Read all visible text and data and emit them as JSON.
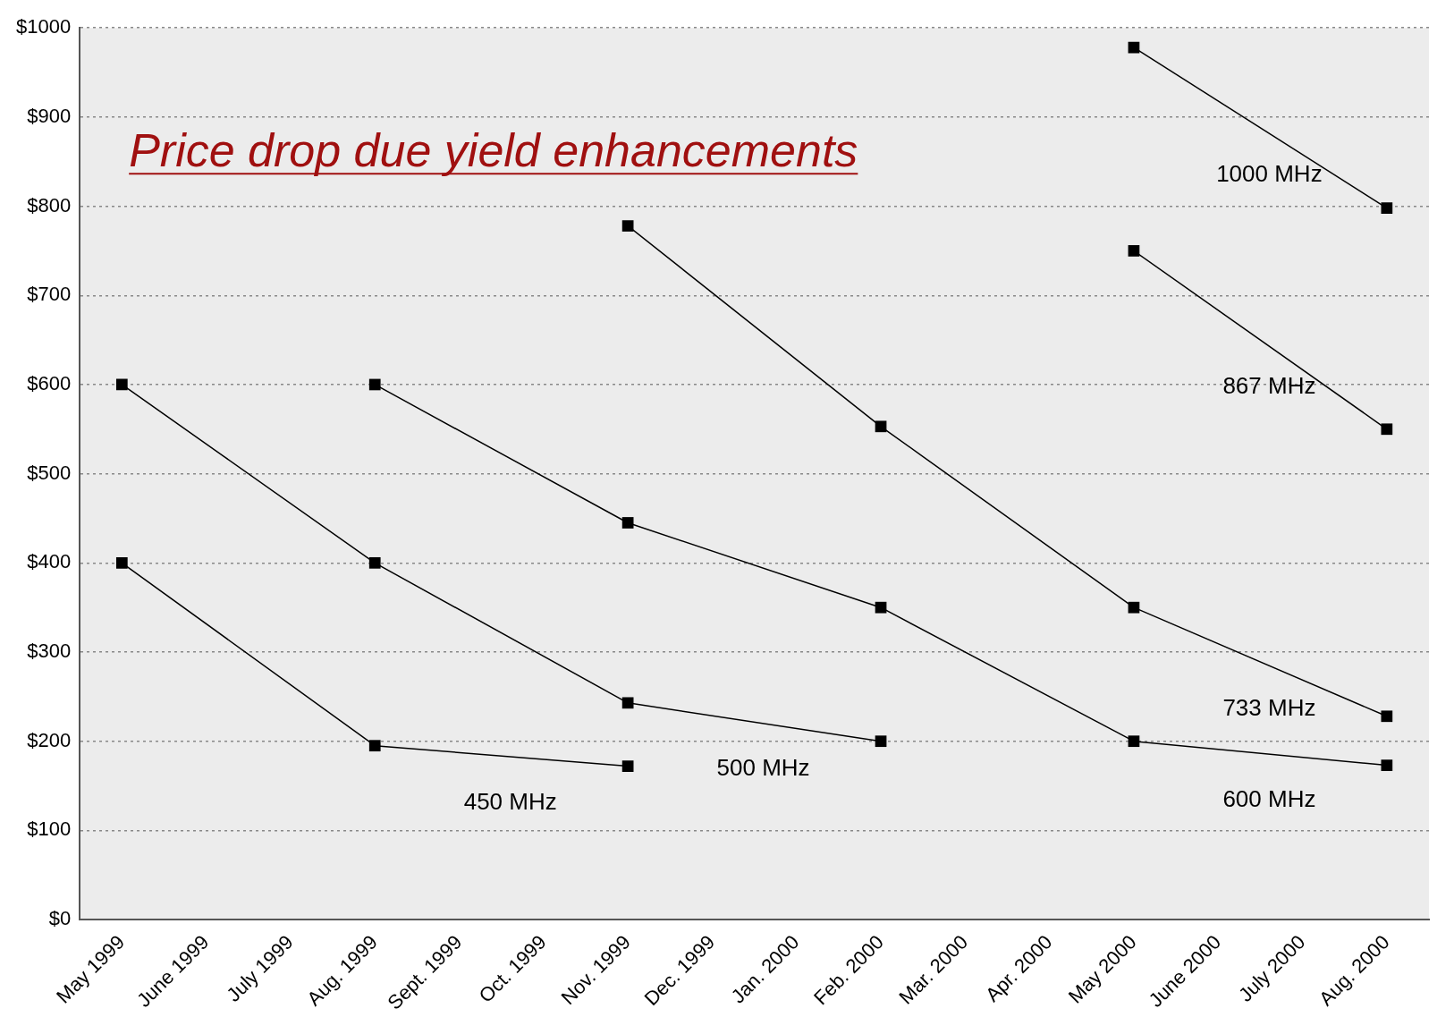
{
  "chart_data": {
    "type": "line",
    "categories": [
      "May 1999",
      "June 1999",
      "July 1999",
      "Aug. 1999",
      "Sept. 1999",
      "Oct. 1999",
      "Nov. 1999",
      "Dec. 1999",
      "Jan. 2000",
      "Feb. 2000",
      "Mar. 2000",
      "Apr. 2000",
      "May 2000",
      "June 2000",
      "July 2000",
      "Aug. 2000"
    ],
    "series": [
      {
        "name": "450 MHz",
        "color": "#000000",
        "values": [
          400,
          null,
          null,
          195,
          null,
          null,
          172,
          null,
          null,
          null,
          null,
          null,
          null,
          null,
          null,
          null
        ]
      },
      {
        "name": "500 MHz",
        "color": "#000000",
        "values": [
          600,
          null,
          null,
          400,
          null,
          null,
          243,
          null,
          null,
          200,
          null,
          null,
          null,
          null,
          null,
          null
        ]
      },
      {
        "name": "600 MHz",
        "color": "#000000",
        "values": [
          null,
          null,
          null,
          600,
          null,
          null,
          445,
          null,
          null,
          350,
          null,
          null,
          200,
          null,
          null,
          173
        ]
      },
      {
        "name": "733 MHz",
        "color": "#000000",
        "values": [
          null,
          null,
          null,
          null,
          null,
          null,
          778,
          null,
          null,
          553,
          null,
          null,
          350,
          null,
          null,
          228
        ]
      },
      {
        "name": "867 MHz",
        "color": "#000000",
        "values": [
          null,
          null,
          null,
          null,
          null,
          null,
          null,
          null,
          null,
          null,
          null,
          null,
          750,
          null,
          null,
          550
        ]
      },
      {
        "name": "1000 MHz",
        "color": "#000000",
        "values": [
          null,
          null,
          null,
          null,
          null,
          null,
          null,
          null,
          null,
          null,
          null,
          null,
          978,
          null,
          null,
          798
        ]
      }
    ],
    "ylim": [
      0,
      1000
    ],
    "yticks": [
      {
        "value": 0,
        "label": "$0"
      },
      {
        "value": 100,
        "label": "$100"
      },
      {
        "value": 200,
        "label": "$200"
      },
      {
        "value": 300,
        "label": "$300"
      },
      {
        "value": 400,
        "label": "$400"
      },
      {
        "value": 500,
        "label": "$500"
      },
      {
        "value": 600,
        "label": "$600"
      },
      {
        "value": 700,
        "label": "$700"
      },
      {
        "value": 800,
        "label": "$800"
      },
      {
        "value": 900,
        "label": "$900"
      },
      {
        "value": 1000,
        "label": "$1000"
      }
    ],
    "grid": "y",
    "marker": "square",
    "line_style": "solid",
    "legend": false,
    "annotations": [
      "Price drop due yield enhancements"
    ]
  }
}
